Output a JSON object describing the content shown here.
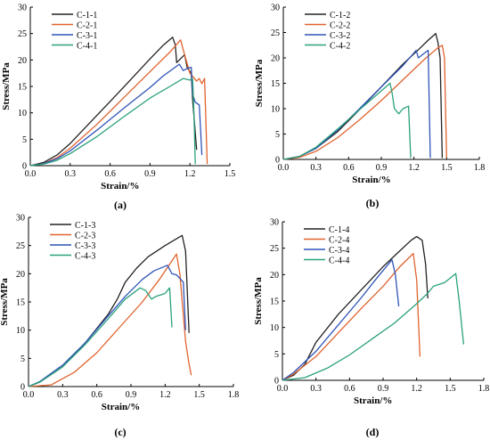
{
  "chart_data": [
    {
      "type": "line",
      "panel_label": "(a)",
      "xlabel": "Strain/%",
      "ylabel": "Stress/MPa",
      "xlim": [
        0,
        1.5
      ],
      "ylim": [
        0,
        30
      ],
      "xticks": [
        "0.0",
        "0.3",
        "0.6",
        "0.9",
        "1.2",
        "1.5"
      ],
      "yticks": [
        "0",
        "5",
        "10",
        "15",
        "20",
        "25",
        "30"
      ],
      "legend_position": "top-left",
      "series": [
        {
          "name": "C-1-1",
          "color": "#222222",
          "points": [
            [
              0,
              0
            ],
            [
              0.1,
              0.6
            ],
            [
              0.2,
              2.0
            ],
            [
              0.3,
              4.2
            ],
            [
              0.5,
              9.5
            ],
            [
              0.7,
              14.8
            ],
            [
              0.9,
              20.2
            ],
            [
              1.0,
              22.8
            ],
            [
              1.07,
              24.3
            ],
            [
              1.09,
              22.8
            ],
            [
              1.1,
              19.5
            ],
            [
              1.16,
              21.0
            ],
            [
              1.18,
              18.5
            ],
            [
              1.21,
              17.5
            ],
            [
              1.22,
              12.5
            ],
            [
              1.25,
              3.0
            ]
          ]
        },
        {
          "name": "C-2-1",
          "color": "#e0632e",
          "points": [
            [
              0,
              0
            ],
            [
              0.1,
              0.4
            ],
            [
              0.2,
              1.5
            ],
            [
              0.3,
              3.3
            ],
            [
              0.5,
              7.8
            ],
            [
              0.7,
              12.8
            ],
            [
              0.9,
              17.8
            ],
            [
              1.05,
              21.5
            ],
            [
              1.13,
              23.8
            ],
            [
              1.16,
              21.0
            ],
            [
              1.2,
              17.5
            ],
            [
              1.25,
              16.0
            ],
            [
              1.27,
              16.5
            ],
            [
              1.29,
              15.5
            ],
            [
              1.31,
              16.5
            ],
            [
              1.33,
              0.3
            ]
          ]
        },
        {
          "name": "C-3-1",
          "color": "#2f54b8",
          "points": [
            [
              0,
              0
            ],
            [
              0.1,
              0.4
            ],
            [
              0.2,
              1.3
            ],
            [
              0.3,
              2.8
            ],
            [
              0.5,
              6.7
            ],
            [
              0.7,
              10.8
            ],
            [
              0.9,
              14.8
            ],
            [
              1.0,
              17.0
            ],
            [
              1.12,
              19.2
            ],
            [
              1.15,
              18.0
            ],
            [
              1.18,
              18.4
            ],
            [
              1.21,
              18.6
            ],
            [
              1.22,
              13.5
            ],
            [
              1.24,
              12.0
            ],
            [
              1.27,
              11.5
            ],
            [
              1.29,
              2.0
            ]
          ]
        },
        {
          "name": "C-4-1",
          "color": "#2aa17c",
          "points": [
            [
              0,
              0
            ],
            [
              0.1,
              0.3
            ],
            [
              0.2,
              1.0
            ],
            [
              0.3,
              2.3
            ],
            [
              0.5,
              5.5
            ],
            [
              0.7,
              9.2
            ],
            [
              0.9,
              12.8
            ],
            [
              1.05,
              15.0
            ],
            [
              1.15,
              16.5
            ],
            [
              1.2,
              16.2
            ],
            [
              1.22,
              16.4
            ],
            [
              1.23,
              10.0
            ],
            [
              1.24,
              0.3
            ]
          ]
        }
      ]
    },
    {
      "type": "line",
      "panel_label": "(b)",
      "xlabel": "Strain/%",
      "ylabel": "Stress/MPa",
      "xlim": [
        0,
        1.8
      ],
      "ylim": [
        0,
        30
      ],
      "xticks": [
        "0.0",
        "0.3",
        "0.6",
        "0.9",
        "1.2",
        "1.5",
        "1.8"
      ],
      "yticks": [
        "0",
        "5",
        "10",
        "15",
        "20",
        "25",
        "30"
      ],
      "legend_position": "top-left",
      "series": [
        {
          "name": "C-1-2",
          "color": "#222222",
          "points": [
            [
              0,
              0
            ],
            [
              0.15,
              0.6
            ],
            [
              0.3,
              2.2
            ],
            [
              0.5,
              5.5
            ],
            [
              0.7,
              9.8
            ],
            [
              0.9,
              14.3
            ],
            [
              1.1,
              18.8
            ],
            [
              1.25,
              21.8
            ],
            [
              1.33,
              23.5
            ],
            [
              1.4,
              24.8
            ],
            [
              1.42,
              23.0
            ],
            [
              1.44,
              20.0
            ],
            [
              1.46,
              0.3
            ]
          ]
        },
        {
          "name": "C-2-2",
          "color": "#e0632e",
          "points": [
            [
              0,
              0
            ],
            [
              0.15,
              0.4
            ],
            [
              0.3,
              1.6
            ],
            [
              0.5,
              4.3
            ],
            [
              0.7,
              7.8
            ],
            [
              0.9,
              11.6
            ],
            [
              1.1,
              15.7
            ],
            [
              1.3,
              19.8
            ],
            [
              1.42,
              22.0
            ],
            [
              1.46,
              22.5
            ],
            [
              1.48,
              20.0
            ],
            [
              1.5,
              0.3
            ]
          ]
        },
        {
          "name": "C-3-2",
          "color": "#2f54b8",
          "points": [
            [
              0,
              0
            ],
            [
              0.15,
              0.6
            ],
            [
              0.3,
              2.2
            ],
            [
              0.5,
              5.8
            ],
            [
              0.7,
              10.0
            ],
            [
              0.9,
              14.3
            ],
            [
              1.1,
              18.5
            ],
            [
              1.22,
              21.5
            ],
            [
              1.24,
              20.0
            ],
            [
              1.3,
              21.0
            ],
            [
              1.33,
              21.5
            ],
            [
              1.35,
              0.3
            ]
          ]
        },
        {
          "name": "C-4-2",
          "color": "#2aa17c",
          "points": [
            [
              0,
              0
            ],
            [
              0.15,
              0.6
            ],
            [
              0.3,
              2.4
            ],
            [
              0.5,
              6.0
            ],
            [
              0.7,
              9.8
            ],
            [
              0.9,
              13.5
            ],
            [
              0.98,
              15.0
            ],
            [
              1.0,
              13.0
            ],
            [
              1.02,
              10.0
            ],
            [
              1.06,
              9.0
            ],
            [
              1.1,
              10.0
            ],
            [
              1.15,
              10.5
            ],
            [
              1.17,
              0.3
            ]
          ]
        }
      ]
    },
    {
      "type": "line",
      "panel_label": "(c)",
      "xlabel": "Strain/%",
      "ylabel": "Stress/MPa",
      "xlim": [
        0,
        1.8
      ],
      "ylim": [
        0,
        30
      ],
      "xticks": [
        "0.0",
        "0.3",
        "0.6",
        "0.9",
        "1.2",
        "1.5",
        "1.8"
      ],
      "yticks": [
        "0",
        "5",
        "10",
        "15",
        "20",
        "25",
        "30"
      ],
      "legend_position": "top-left",
      "series": [
        {
          "name": "C-1-3",
          "color": "#222222",
          "points": [
            [
              0,
              0
            ],
            [
              0.1,
              0.8
            ],
            [
              0.3,
              3.5
            ],
            [
              0.5,
              7.8
            ],
            [
              0.7,
              12.8
            ],
            [
              0.78,
              15.5
            ],
            [
              0.85,
              18.5
            ],
            [
              0.95,
              21.0
            ],
            [
              1.05,
              23.0
            ],
            [
              1.2,
              25.0
            ],
            [
              1.35,
              26.8
            ],
            [
              1.38,
              24.0
            ],
            [
              1.41,
              9.5
            ]
          ]
        },
        {
          "name": "C-2-3",
          "color": "#e0632e",
          "points": [
            [
              0,
              0
            ],
            [
              0.2,
              0.3
            ],
            [
              0.4,
              2.5
            ],
            [
              0.6,
              6.0
            ],
            [
              0.8,
              10.5
            ],
            [
              1.0,
              15.0
            ],
            [
              1.15,
              19.0
            ],
            [
              1.3,
              23.5
            ],
            [
              1.33,
              20.0
            ],
            [
              1.38,
              8.0
            ],
            [
              1.41,
              4.0
            ],
            [
              1.43,
              2.0
            ]
          ]
        },
        {
          "name": "C-3-3",
          "color": "#2f54b8",
          "points": [
            [
              0,
              0
            ],
            [
              0.1,
              0.9
            ],
            [
              0.3,
              3.8
            ],
            [
              0.5,
              7.8
            ],
            [
              0.7,
              12.5
            ],
            [
              0.85,
              16.0
            ],
            [
              1.0,
              19.0
            ],
            [
              1.1,
              20.5
            ],
            [
              1.22,
              21.5
            ],
            [
              1.26,
              20.0
            ],
            [
              1.3,
              19.8
            ],
            [
              1.36,
              18.5
            ],
            [
              1.38,
              10.0
            ]
          ]
        },
        {
          "name": "C-4-3",
          "color": "#2aa17c",
          "points": [
            [
              0,
              0
            ],
            [
              0.1,
              0.8
            ],
            [
              0.3,
              3.5
            ],
            [
              0.5,
              7.5
            ],
            [
              0.7,
              12.0
            ],
            [
              0.85,
              15.5
            ],
            [
              0.98,
              17.5
            ],
            [
              1.03,
              17.0
            ],
            [
              1.08,
              15.5
            ],
            [
              1.12,
              16.0
            ],
            [
              1.2,
              16.5
            ],
            [
              1.24,
              17.5
            ],
            [
              1.26,
              10.5
            ]
          ]
        }
      ]
    },
    {
      "type": "line",
      "panel_label": "(d)",
      "xlabel": "Strain/%",
      "ylabel": "Stress/MPa",
      "xlim": [
        0,
        1.8
      ],
      "ylim": [
        0,
        30
      ],
      "xticks": [
        "0.0",
        "0.3",
        "0.6",
        "0.9",
        "1.2",
        "1.5",
        "1.8"
      ],
      "yticks": [
        "0",
        "5",
        "10",
        "15",
        "20",
        "25",
        "30"
      ],
      "legend_position": "top-left",
      "series": [
        {
          "name": "C-1-4",
          "color": "#222222",
          "points": [
            [
              0,
              0
            ],
            [
              0.1,
              1.0
            ],
            [
              0.2,
              3.0
            ],
            [
              0.3,
              7.2
            ],
            [
              0.5,
              12.5
            ],
            [
              0.7,
              17.0
            ],
            [
              0.9,
              21.5
            ],
            [
              1.05,
              24.5
            ],
            [
              1.15,
              26.5
            ],
            [
              1.2,
              27.2
            ],
            [
              1.25,
              26.5
            ],
            [
              1.28,
              22.0
            ],
            [
              1.3,
              15.5
            ]
          ]
        },
        {
          "name": "C-2-4",
          "color": "#e0632e",
          "points": [
            [
              0,
              0
            ],
            [
              0.1,
              1.2
            ],
            [
              0.3,
              4.5
            ],
            [
              0.5,
              9.0
            ],
            [
              0.7,
              13.5
            ],
            [
              0.9,
              17.8
            ],
            [
              1.05,
              21.5
            ],
            [
              1.17,
              24.0
            ],
            [
              1.2,
              19.0
            ],
            [
              1.23,
              4.5
            ]
          ]
        },
        {
          "name": "C-3-4",
          "color": "#2f54b8",
          "points": [
            [
              0,
              0
            ],
            [
              0.1,
              1.5
            ],
            [
              0.3,
              5.5
            ],
            [
              0.5,
              10.5
            ],
            [
              0.7,
              15.5
            ],
            [
              0.85,
              19.5
            ],
            [
              0.98,
              22.8
            ],
            [
              1.01,
              20.0
            ],
            [
              1.04,
              14.0
            ]
          ]
        },
        {
          "name": "C-4-4",
          "color": "#2aa17c",
          "points": [
            [
              0,
              0
            ],
            [
              0.2,
              0.5
            ],
            [
              0.4,
              2.3
            ],
            [
              0.6,
              4.8
            ],
            [
              0.8,
              7.8
            ],
            [
              1.0,
              10.8
            ],
            [
              1.2,
              14.5
            ],
            [
              1.3,
              16.5
            ],
            [
              1.35,
              17.8
            ],
            [
              1.45,
              18.5
            ],
            [
              1.55,
              20.2
            ],
            [
              1.58,
              15.0
            ],
            [
              1.62,
              6.8
            ]
          ]
        }
      ]
    }
  ]
}
